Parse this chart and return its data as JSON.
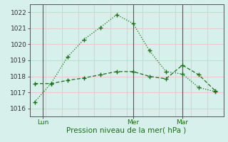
{
  "line1_x": [
    0,
    1,
    2,
    3,
    4,
    5,
    6,
    7,
    8,
    9,
    10,
    11
  ],
  "line1_y": [
    1016.4,
    1017.55,
    1019.2,
    1020.3,
    1021.05,
    1021.85,
    1021.3,
    1019.6,
    1018.3,
    1018.15,
    1017.3,
    1017.05
  ],
  "line2_x": [
    0,
    1,
    2,
    3,
    4,
    5,
    6,
    7,
    8,
    9,
    10,
    11
  ],
  "line2_y": [
    1017.55,
    1017.55,
    1017.75,
    1017.9,
    1018.1,
    1018.3,
    1018.3,
    1018.0,
    1017.85,
    1018.7,
    1018.1,
    1017.1
  ],
  "line_color": "#1a6e1a",
  "bg_color": "#d8f0ec",
  "grid_color_h": "#e8c8c8",
  "grid_color_v": "#c8d8d0",
  "axis_line_color": "#555555",
  "xlabel": "Pression niveau de la mer( hPa )",
  "xtick_positions": [
    0.5,
    6.0,
    9.0
  ],
  "xtick_labels": [
    "Lun",
    "Mer",
    "Mar"
  ],
  "ytick_positions": [
    1016,
    1017,
    1018,
    1019,
    1020,
    1021,
    1022
  ],
  "ylim": [
    1015.5,
    1022.5
  ],
  "xlim": [
    -0.3,
    11.5
  ],
  "vline_x": [
    0.5,
    6.0,
    9.0
  ],
  "xlabel_fontsize": 7.5,
  "tick_fontsize": 6.5
}
